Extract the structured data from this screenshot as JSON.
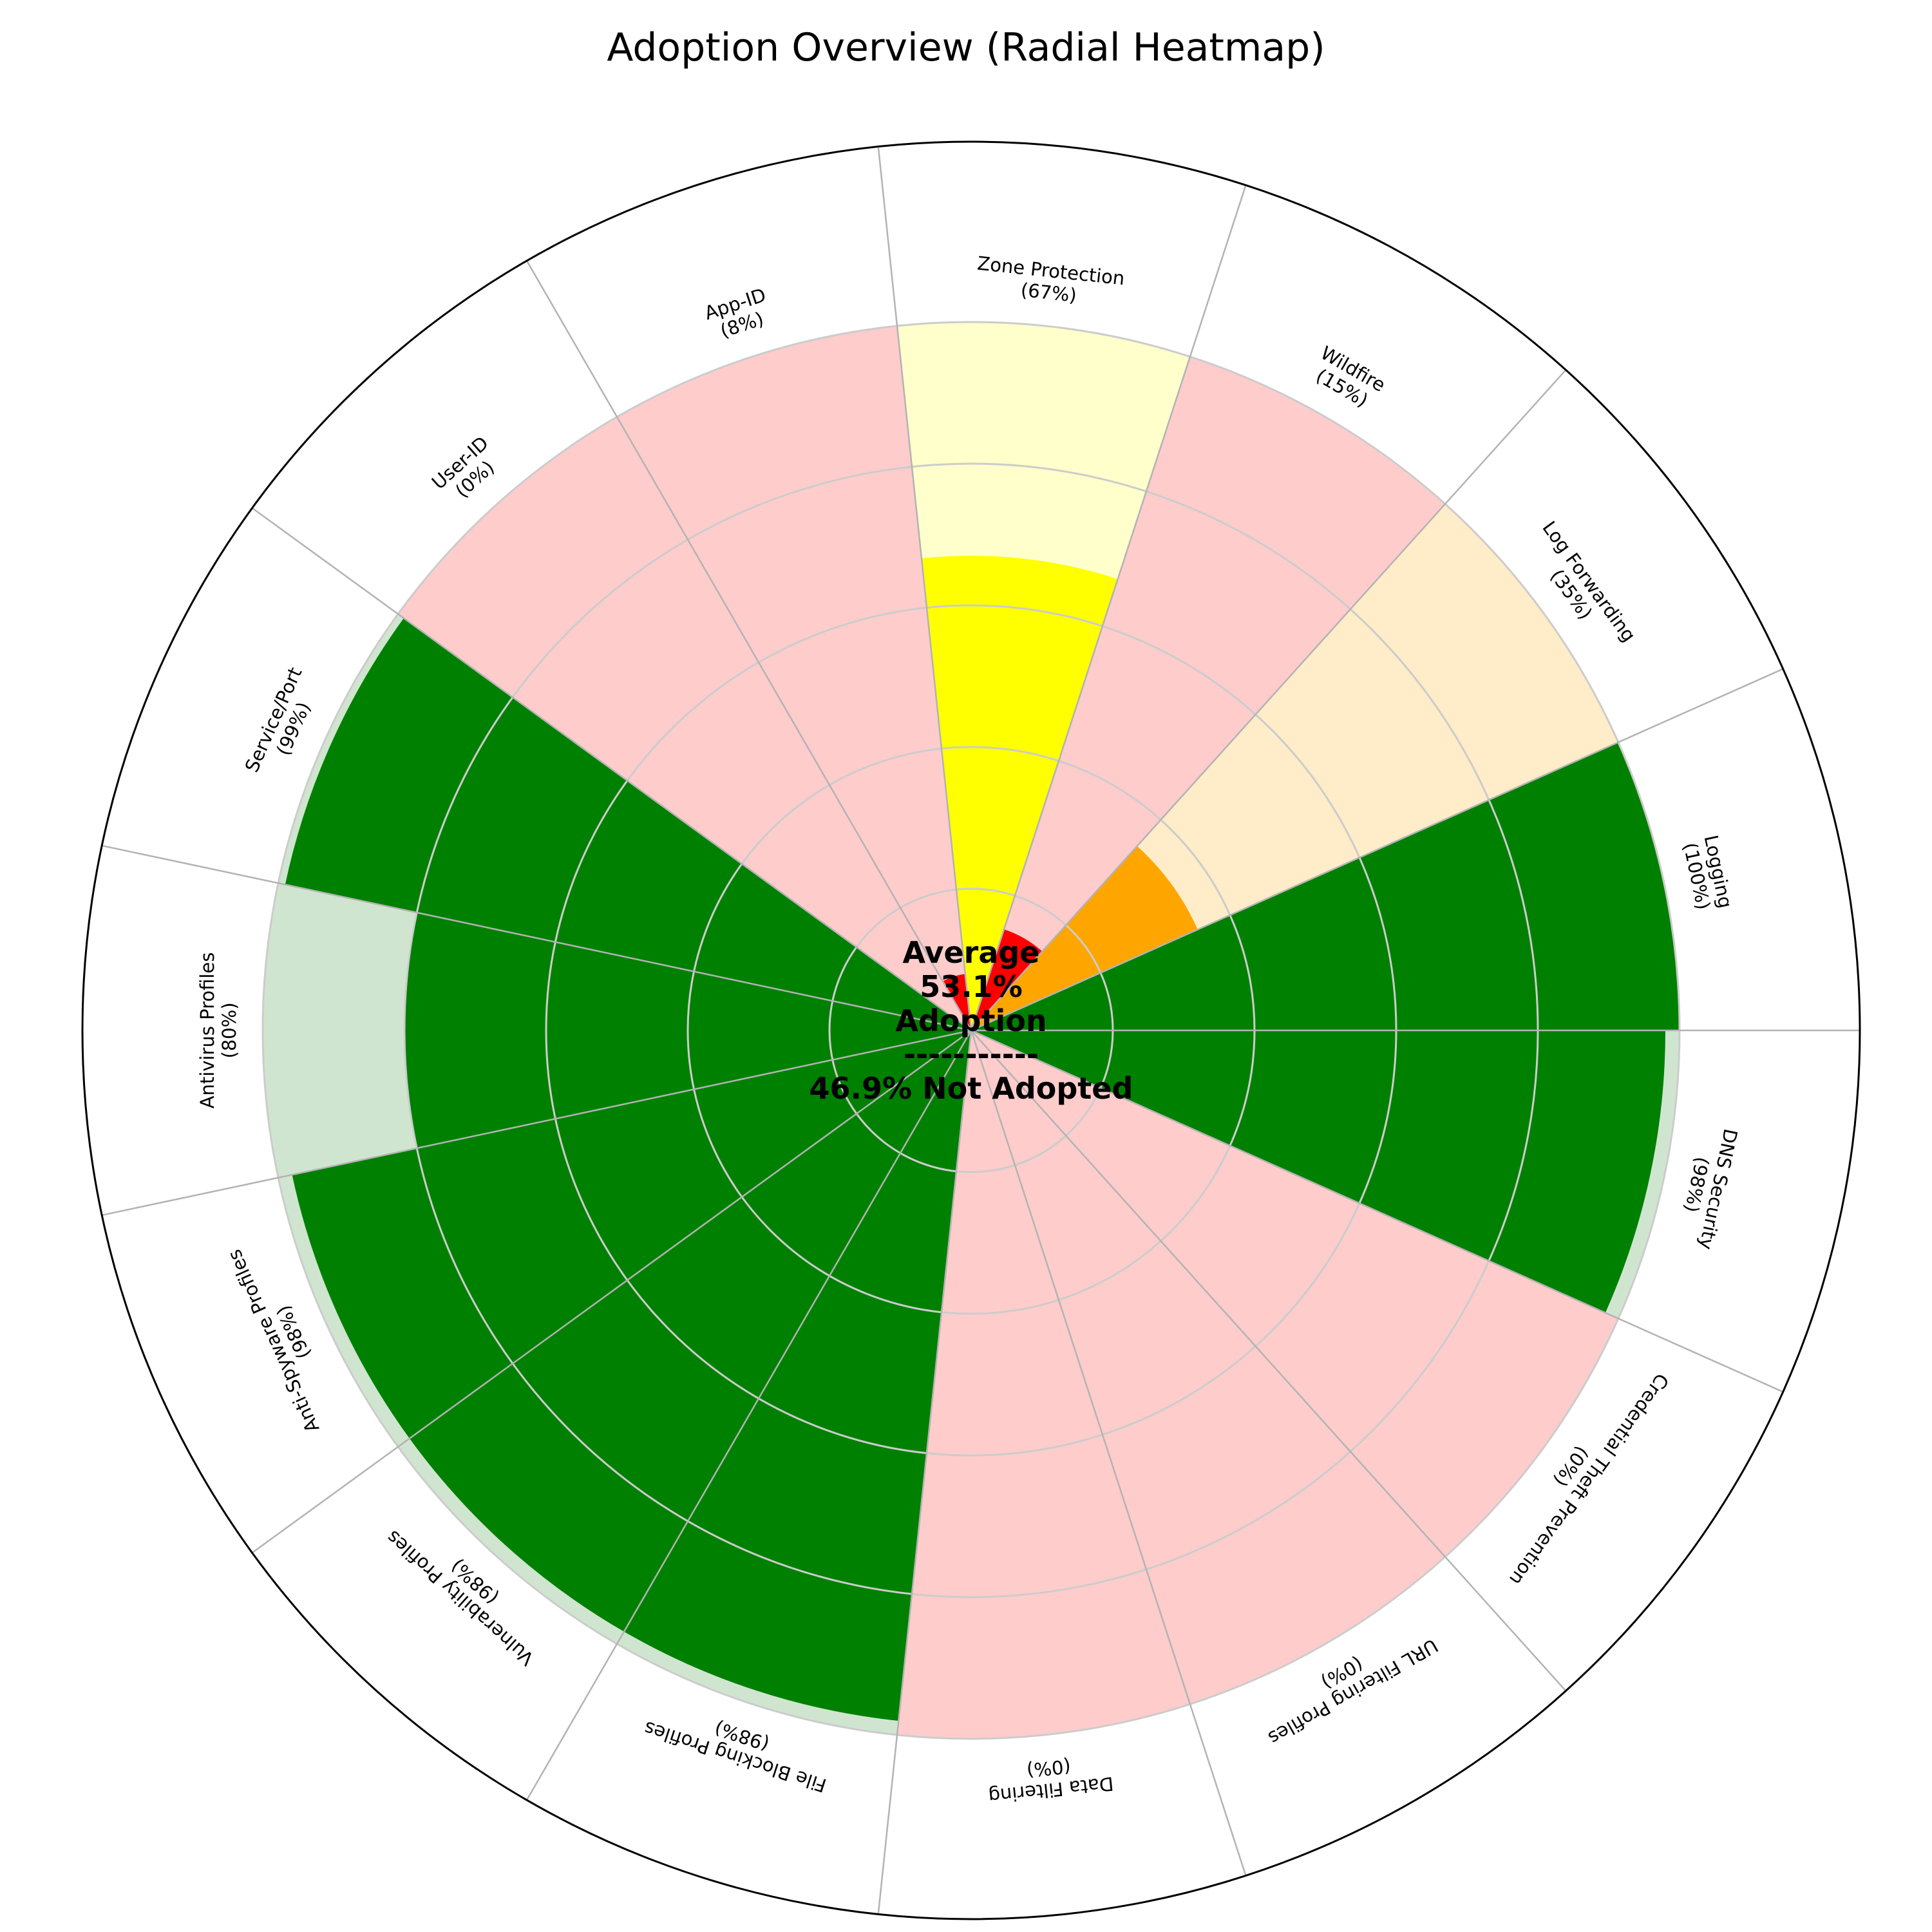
{
  "chart_data": {
    "type": "radial-heatmap",
    "title": "Adoption Overview (Radial Heatmap)",
    "unit": "%",
    "r_max": 100,
    "grid_rings": [
      20,
      40,
      60,
      80
    ],
    "segments": [
      {
        "name": "Logging",
        "value": 100,
        "percent_label": "(100%)",
        "color": "#008000",
        "bg_color": "#cfe5cf"
      },
      {
        "name": "Log Forwarding",
        "value": 35,
        "percent_label": "(35%)",
        "color": "#ffa500",
        "bg_color": "#ffecc8"
      },
      {
        "name": "Wildfire",
        "value": 15,
        "percent_label": "(15%)",
        "color": "#ff0000",
        "bg_color": "#ffcccc"
      },
      {
        "name": "Zone Protection",
        "value": 67,
        "percent_label": "(67%)",
        "color": "#ffff00",
        "bg_color": "#ffffcc"
      },
      {
        "name": "App-ID",
        "value": 8,
        "percent_label": "(8%)",
        "color": "#ff0000",
        "bg_color": "#ffcccc"
      },
      {
        "name": "User-ID",
        "value": 0,
        "percent_label": "(0%)",
        "color": "#ff0000",
        "bg_color": "#ffcccc"
      },
      {
        "name": "Service/Port",
        "value": 99,
        "percent_label": "(99%)",
        "color": "#008000",
        "bg_color": "#cfe5cf"
      },
      {
        "name": "Antivirus Profiles",
        "value": 80,
        "percent_label": "(80%)",
        "color": "#008000",
        "bg_color": "#cfe5cf"
      },
      {
        "name": "Anti-Spyware Profiles",
        "value": 98,
        "percent_label": "(98%)",
        "color": "#008000",
        "bg_color": "#cfe5cf"
      },
      {
        "name": "Vulnerability Profiles",
        "value": 98,
        "percent_label": "(98%)",
        "color": "#008000",
        "bg_color": "#cfe5cf"
      },
      {
        "name": "File Blocking Profiles",
        "value": 98,
        "percent_label": "(98%)",
        "color": "#008000",
        "bg_color": "#cfe5cf"
      },
      {
        "name": "Data Filtering",
        "value": 0,
        "percent_label": "(0%)",
        "color": "#ff0000",
        "bg_color": "#ffcccc"
      },
      {
        "name": "URL Filtering Profiles",
        "value": 0,
        "percent_label": "(0%)",
        "color": "#ff0000",
        "bg_color": "#ffcccc"
      },
      {
        "name": "Credential Theft Prevention",
        "value": 0,
        "percent_label": "(0%)",
        "color": "#ff0000",
        "bg_color": "#ffcccc"
      },
      {
        "name": "DNS Security",
        "value": 98,
        "percent_label": "(98%)",
        "color": "#008000",
        "bg_color": "#cfe5cf"
      }
    ],
    "center": {
      "line1": "Average",
      "line2": "53.1%",
      "line3": "Adoption",
      "line4": "-----------",
      "line5": "46.9% Not Adopted"
    },
    "colors": {
      "grid": "#cccccc",
      "spoke": "#b3b3b3",
      "outer_ring": "#000000"
    }
  }
}
